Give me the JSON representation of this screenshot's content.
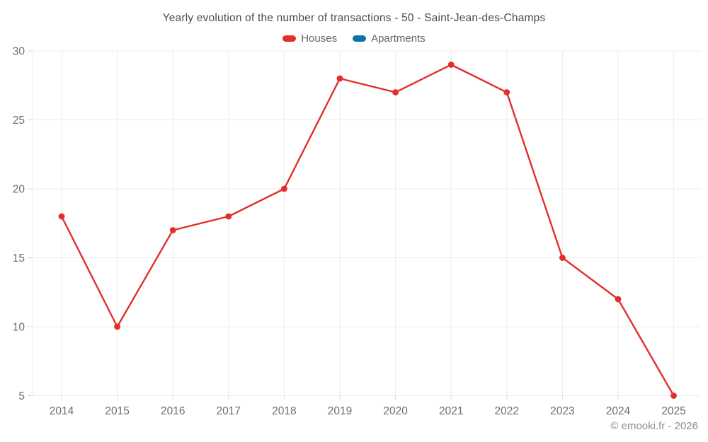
{
  "title": "Yearly evolution of the number of transactions - 50 - Saint-Jean-des-Champs",
  "footer": {
    "copyright": "© emooki.fr - 2026"
  },
  "chart_data": {
    "type": "line",
    "title": "Yearly evolution of the number of transactions - 50 - Saint-Jean-des-Champs",
    "categories": [
      "2014",
      "2015",
      "2016",
      "2017",
      "2018",
      "2019",
      "2020",
      "2021",
      "2022",
      "2023",
      "2024",
      "2025"
    ],
    "series": [
      {
        "name": "Houses",
        "color": "#e12f2b",
        "marker": "circle",
        "values": [
          18,
          10,
          17,
          18,
          20,
          28,
          27,
          29,
          27,
          15,
          12,
          5
        ]
      },
      {
        "name": "Apartments",
        "color": "#1173a2",
        "marker": "circle",
        "values": []
      }
    ],
    "ylim": [
      5,
      30
    ],
    "yticks": [
      5,
      10,
      15,
      20,
      25,
      30
    ],
    "xlabel": "",
    "ylabel": "",
    "grid": true,
    "legend_position": "top",
    "colors": {
      "grid": "#ececec",
      "tick": "#d8d8d8",
      "axis_text": "#6d6d6d",
      "title_text": "#4a4a4a",
      "legend_text": "#666666",
      "footer_text": "#8c8c8c",
      "background": "#ffffff"
    }
  }
}
